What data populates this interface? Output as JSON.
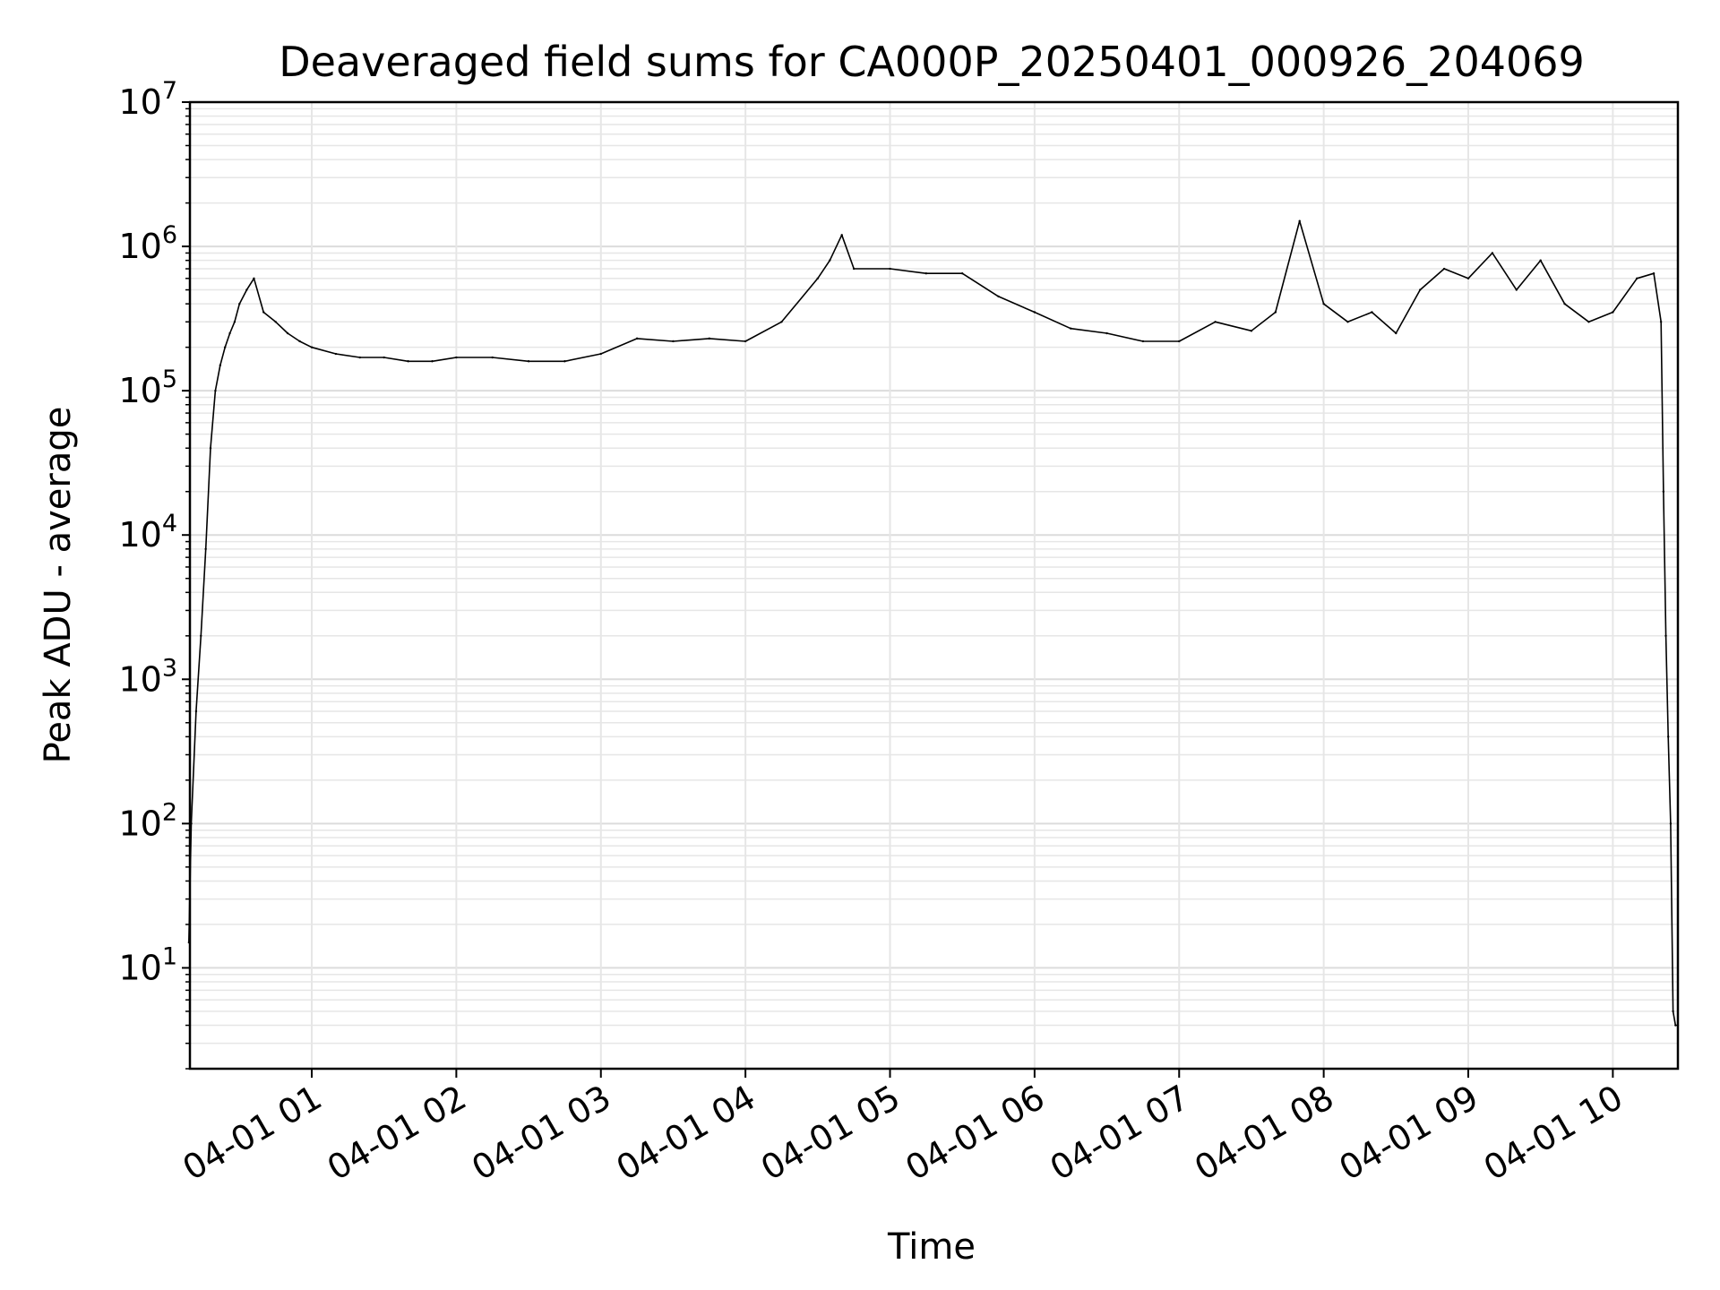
{
  "chart_data": {
    "type": "line",
    "title": "Deaveraged field sums for CA000P_20250401_000926_204069",
    "xlabel": "Time",
    "ylabel": "Peak ADU - average",
    "yscale": "log",
    "ylim": [
      2,
      10000000
    ],
    "xlim": [
      "2025-04-01 00:09:26",
      "2025-04-01 10:27:00"
    ],
    "grid": true,
    "x_ticks": [
      "04-01 01",
      "04-01 02",
      "04-01 03",
      "04-01 04",
      "04-01 05",
      "04-01 06",
      "04-01 07",
      "04-01 08",
      "04-01 09",
      "04-01 10"
    ],
    "y_ticks": [
      {
        "base": "10",
        "exp": "1",
        "value": 10
      },
      {
        "base": "10",
        "exp": "2",
        "value": 100
      },
      {
        "base": "10",
        "exp": "3",
        "value": 1000
      },
      {
        "base": "10",
        "exp": "4",
        "value": 10000
      },
      {
        "base": "10",
        "exp": "5",
        "value": 100000
      },
      {
        "base": "10",
        "exp": "6",
        "value": 1000000
      },
      {
        "base": "10",
        "exp": "7",
        "value": 10000000
      }
    ],
    "line_color": "#000000",
    "series": [
      {
        "x": [
          "00:09",
          "00:10",
          "00:12",
          "00:14",
          "00:16",
          "00:18",
          "00:20",
          "00:22",
          "00:24",
          "00:26",
          "00:28",
          "00:30",
          "00:33",
          "00:36",
          "00:40",
          "00:45",
          "00:50",
          "00:55",
          "01:00",
          "01:10",
          "01:20",
          "01:30",
          "01:40",
          "01:50",
          "02:00",
          "02:15",
          "02:30",
          "02:45",
          "03:00",
          "03:15",
          "03:30",
          "03:45",
          "04:00",
          "04:15",
          "04:30",
          "04:35",
          "04:40",
          "04:45",
          "05:00",
          "05:15",
          "05:30",
          "05:45",
          "06:00",
          "06:15",
          "06:30",
          "06:45",
          "07:00",
          "07:15",
          "07:30",
          "07:40",
          "07:50",
          "08:00",
          "08:10",
          "08:20",
          "08:30",
          "08:40",
          "08:50",
          "09:00",
          "09:10",
          "09:20",
          "09:30",
          "09:40",
          "09:50",
          "10:00",
          "10:10",
          "10:17",
          "10:20",
          "10:21",
          "10:22",
          "10:23",
          "10:24",
          "10:25",
          "10:26",
          "10:27"
        ],
        "y": [
          15,
          100,
          600,
          2000,
          8000,
          40000,
          100000,
          150000,
          200000,
          250000,
          300000,
          400000,
          500000,
          600000,
          350000,
          300000,
          250000,
          220000,
          200000,
          180000,
          170000,
          170000,
          160000,
          160000,
          170000,
          170000,
          160000,
          160000,
          180000,
          230000,
          220000,
          230000,
          220000,
          300000,
          600000,
          800000,
          1200000,
          700000,
          700000,
          650000,
          650000,
          450000,
          350000,
          270000,
          250000,
          220000,
          220000,
          300000,
          260000,
          350000,
          1500000,
          400000,
          300000,
          350000,
          250000,
          500000,
          700000,
          600000,
          900000,
          500000,
          800000,
          400000,
          300000,
          350000,
          600000,
          650000,
          300000,
          20000,
          2000,
          400,
          100,
          5,
          4,
          4
        ]
      }
    ]
  }
}
